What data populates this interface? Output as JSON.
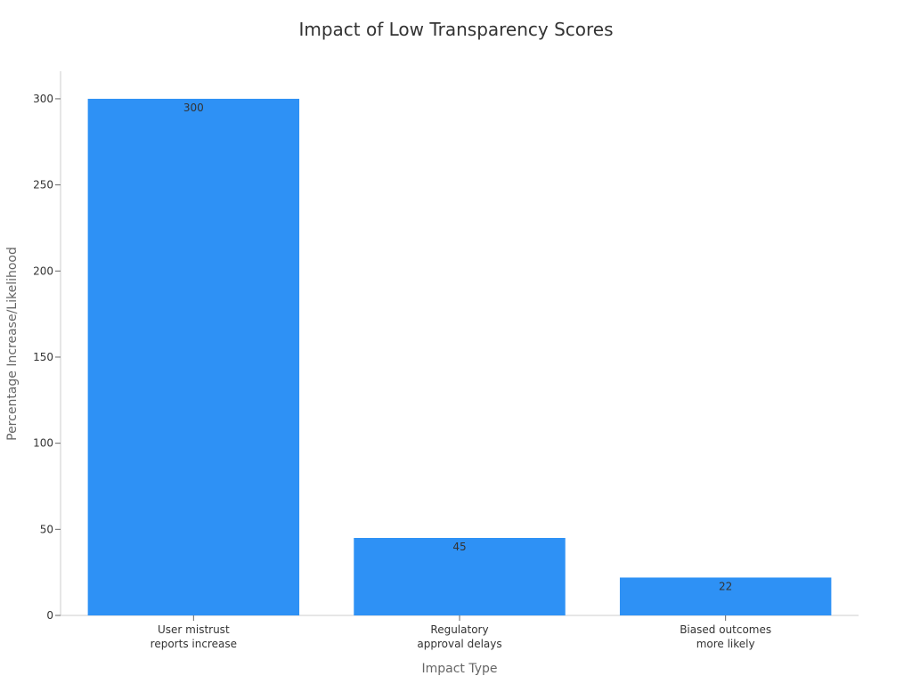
{
  "chart_data": {
    "type": "bar",
    "title": "Impact of Low Transparency Scores",
    "xlabel": "Impact Type",
    "ylabel": "Percentage Increase/Likelihood",
    "categories": [
      [
        "User mistrust",
        "reports increase"
      ],
      [
        "Regulatory",
        "approval delays"
      ],
      [
        "Biased outcomes",
        "more likely"
      ]
    ],
    "values": [
      300,
      45,
      22
    ],
    "ylim": [
      0,
      316
    ],
    "yticks": [
      0,
      50,
      100,
      150,
      200,
      250,
      300
    ],
    "grid": false,
    "bar_color": "#2e91f5",
    "data_labels": true
  }
}
